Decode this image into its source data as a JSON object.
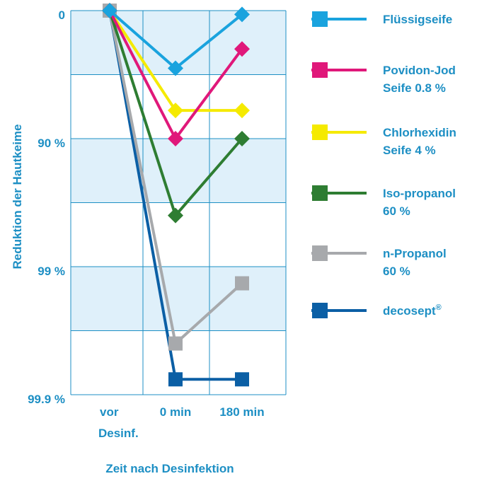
{
  "chart_data": {
    "type": "line",
    "ylabel": "Reduktion der  Hautkeime",
    "xlabel": "Zeit nach Desinfektion",
    "y_scale": "log-reduction",
    "y_ticks": [
      {
        "label": "0",
        "log": 0
      },
      {
        "label": "90 %",
        "log": 1
      },
      {
        "label": "99 %",
        "log": 2
      },
      {
        "label": "99.9 %",
        "log": 3
      }
    ],
    "ylim_log": [
      0,
      3
    ],
    "categories": [
      {
        "line1": "vor",
        "line2": "Desinf."
      },
      {
        "line1": "0 min",
        "line2": ""
      },
      {
        "line1": "180 min",
        "line2": ""
      }
    ],
    "grid": true,
    "legend_position": "right",
    "series": [
      {
        "name": "Flüssigseife",
        "name_line2": "",
        "color": "#1aa3de",
        "marker": "diamond",
        "values_log": [
          0,
          0.45,
          0.03
        ]
      },
      {
        "name": "Povidon-Jod",
        "name_line2": "Seife 0.8 %",
        "color": "#e0187a",
        "marker": "diamond",
        "values_log": [
          0,
          1.0,
          0.3
        ]
      },
      {
        "name": "Chlorhexidin",
        "name_line2": "Seife 4 %",
        "color": "#f5ea00",
        "marker": "diamond",
        "values_log": [
          0,
          0.78,
          0.78
        ]
      },
      {
        "name": "Iso-propanol",
        "name_line2": "60 %",
        "color": "#2e7d32",
        "marker": "diamond",
        "values_log": [
          0,
          1.6,
          1.0
        ]
      },
      {
        "name": "n-Propanol",
        "name_line2": "60 %",
        "color": "#a7a9ac",
        "marker": "square",
        "values_log": [
          0,
          2.6,
          2.13
        ]
      },
      {
        "name": "decosept®",
        "name_line2": "",
        "color": "#0b5fa5",
        "marker": "square",
        "values_log": [
          0,
          2.88,
          2.88
        ]
      }
    ]
  }
}
